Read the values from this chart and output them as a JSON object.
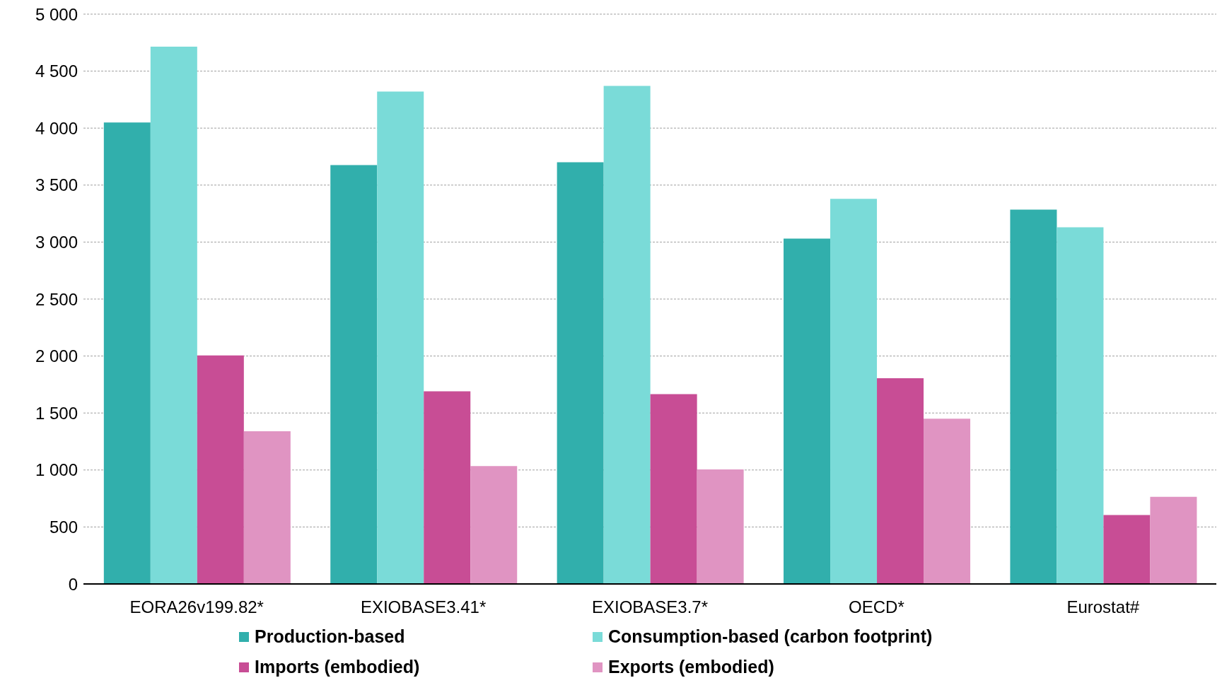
{
  "chart_data": {
    "type": "bar",
    "categories": [
      "EORA26v199.82*",
      "EXIOBASE3.41*",
      "EXIOBASE3.7*",
      "OECD*",
      "Eurostat#"
    ],
    "series": [
      {
        "name": "Production-based",
        "color": "#31afac",
        "values": [
          4050,
          3675,
          3700,
          3030,
          3285
        ]
      },
      {
        "name": "Consumption-based (carbon footprint)",
        "color": "#7adbd8",
        "values": [
          4715,
          4320,
          4370,
          3380,
          3130
        ]
      },
      {
        "name": "Imports (embodied)",
        "color": "#c84d95",
        "values": [
          2005,
          1690,
          1665,
          1805,
          605
        ]
      },
      {
        "name": "Exports (embodied)",
        "color": "#e094c2",
        "values": [
          1340,
          1035,
          1005,
          1450,
          765
        ]
      }
    ],
    "ylim": [
      0,
      5000
    ],
    "yticks": [
      {
        "value": 0,
        "label": "0"
      },
      {
        "value": 500,
        "label": "500"
      },
      {
        "value": 1000,
        "label": "1 000"
      },
      {
        "value": 1500,
        "label": "1 500"
      },
      {
        "value": 2000,
        "label": "2 000"
      },
      {
        "value": 2500,
        "label": "2 500"
      },
      {
        "value": 3000,
        "label": "3 000"
      },
      {
        "value": 3500,
        "label": "3 500"
      },
      {
        "value": 4000,
        "label": "4 000"
      },
      {
        "value": 4500,
        "label": "4 500"
      },
      {
        "value": 5000,
        "label": "5 000"
      }
    ],
    "grid": "y",
    "legend": "bottom"
  }
}
